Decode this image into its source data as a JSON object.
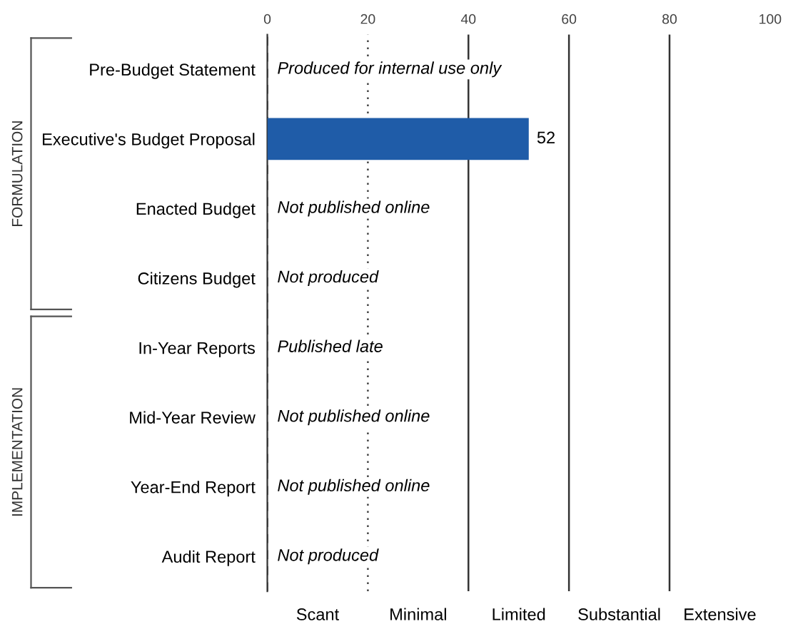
{
  "chart_data": {
    "type": "bar",
    "orientation": "horizontal",
    "categories": [
      "Pre-Budget Statement",
      "Executive's Budget Proposal",
      "Enacted Budget",
      "Citizens Budget",
      "In-Year Reports",
      "Mid-Year Review",
      "Year-End Report",
      "Audit Report"
    ],
    "values": [
      null,
      52,
      null,
      null,
      null,
      null,
      null,
      null
    ],
    "color": "#1f5ca8",
    "data_labels": true,
    "xlim": [
      0,
      100
    ],
    "xticks": [
      0,
      20,
      40,
      60,
      80,
      100
    ],
    "grid": false,
    "ref_lines": [
      {
        "axis": "x",
        "value": 0,
        "line_style": "dashed",
        "color": "#444444"
      },
      {
        "axis": "x",
        "value": 20,
        "line_style": "dotted",
        "color": "#444444"
      },
      {
        "axis": "x",
        "value": 40,
        "line_style": "solid",
        "color": "#333333"
      },
      {
        "axis": "x",
        "value": 60,
        "line_style": "solid",
        "color": "#333333"
      },
      {
        "axis": "x",
        "value": 80,
        "line_style": "solid",
        "color": "#333333"
      }
    ],
    "annotations": [
      "Produced for internal use only",
      "Not published online",
      "Not produced",
      "Published late",
      "Not published online",
      "Not published online",
      "Not produced",
      "FORMULATION",
      "IMPLEMENTATION",
      "Scant",
      "Minimal",
      "Limited",
      "Substantial",
      "Extensive"
    ]
  }
}
